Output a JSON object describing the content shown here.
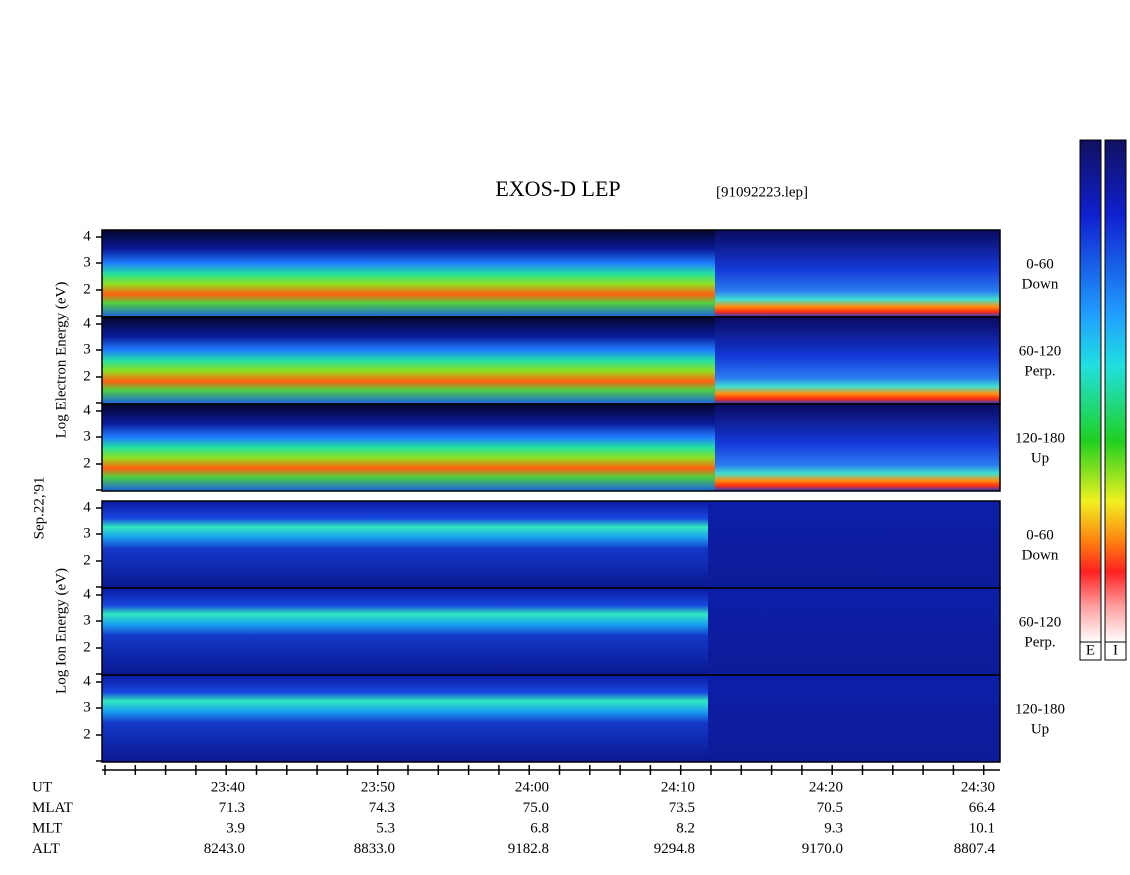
{
  "title": "EXOS-D LEP",
  "file": "[91092223.lep]",
  "date": "Sep.22,'91",
  "groups": [
    {
      "label": "Log Electron Energy (eV)",
      "panels": [
        {
          "ticks": [
            2,
            3,
            4
          ],
          "label": [
            "0-60",
            "Down"
          ]
        },
        {
          "ticks": [
            2,
            3,
            4
          ],
          "label": [
            "60-120",
            "Perp."
          ]
        },
        {
          "ticks": [
            2,
            3,
            4
          ],
          "label": [
            "120-180",
            "Up"
          ]
        }
      ]
    },
    {
      "label": "Log Ion Energy (eV)",
      "panels": [
        {
          "ticks": [
            2,
            3,
            4
          ],
          "label": [
            "0-60",
            "Down"
          ]
        },
        {
          "ticks": [
            2,
            3,
            4
          ],
          "label": [
            "60-120",
            "Perp."
          ]
        },
        {
          "ticks": [
            2,
            3,
            4
          ],
          "label": [
            "120-180",
            "Up"
          ]
        }
      ]
    }
  ],
  "time_table": {
    "rows": [
      [
        "UT",
        "23:40",
        "23:50",
        "24:00",
        "24:10",
        "24:20",
        "24:30"
      ],
      [
        "MLAT",
        "71.3",
        "74.3",
        "75.0",
        "73.5",
        "70.5",
        "66.4"
      ],
      [
        "MLT",
        "3.9",
        "5.3",
        "6.8",
        "8.2",
        "9.3",
        "10.1"
      ],
      [
        "ALT",
        "8243.0",
        "8833.0",
        "9182.8",
        "9294.8",
        "9170.0",
        "8807.4"
      ]
    ]
  },
  "colorbars": [
    "E",
    "I"
  ]
}
